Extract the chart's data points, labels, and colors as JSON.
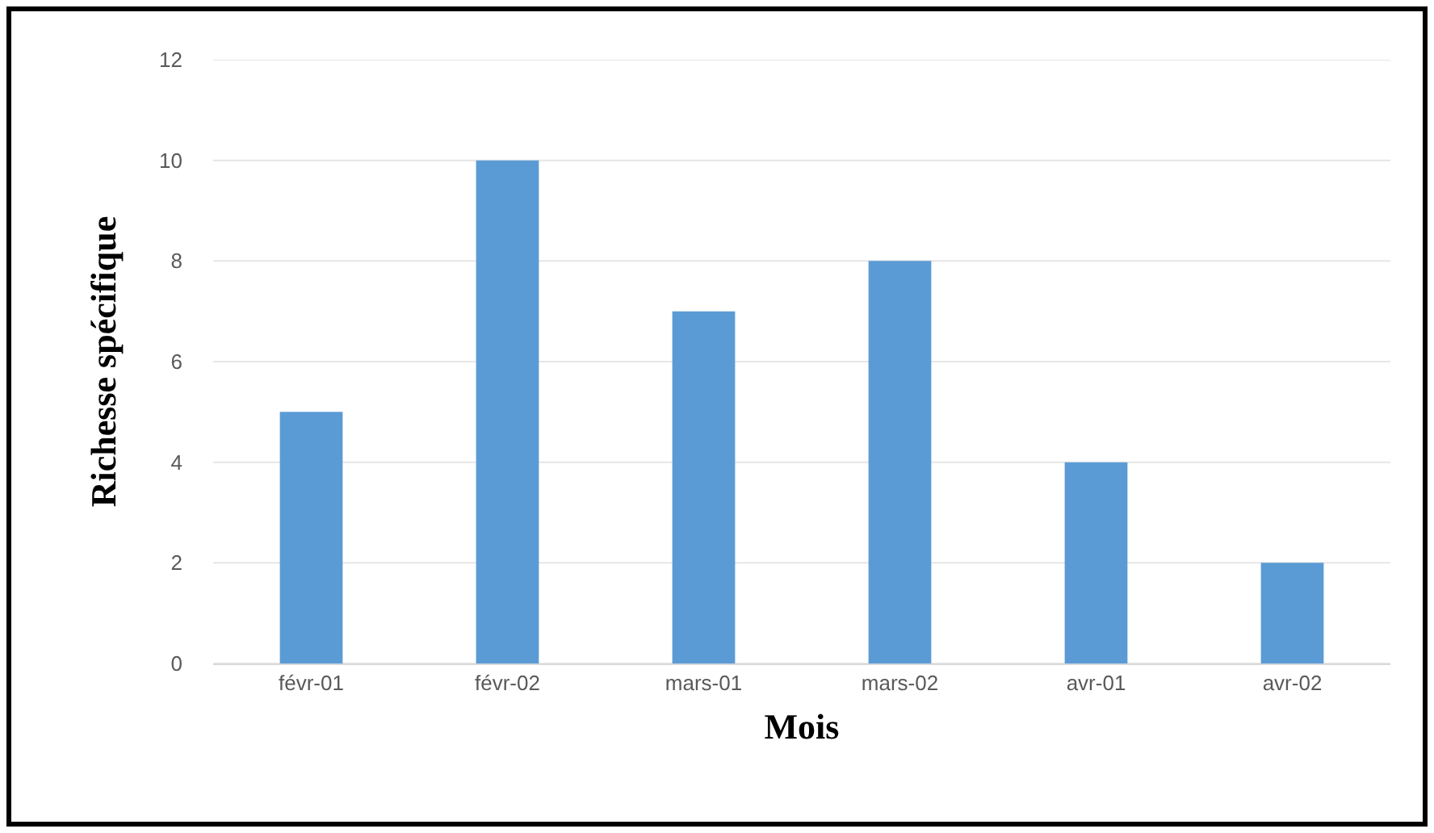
{
  "chart_data": {
    "type": "bar",
    "xlabel": "Mois",
    "ylabel": "Richesse spécifique",
    "categories": [
      "févr-01",
      "févr-02",
      "mars-01",
      "mars-02",
      "avr-01",
      "avr-02"
    ],
    "values": [
      5,
      10,
      7,
      8,
      4,
      2
    ],
    "color": "#5b9bd5",
    "ylim": [
      0,
      12
    ],
    "yticks": [
      0,
      2,
      4,
      6,
      8,
      10,
      12
    ],
    "grid": "y"
  }
}
